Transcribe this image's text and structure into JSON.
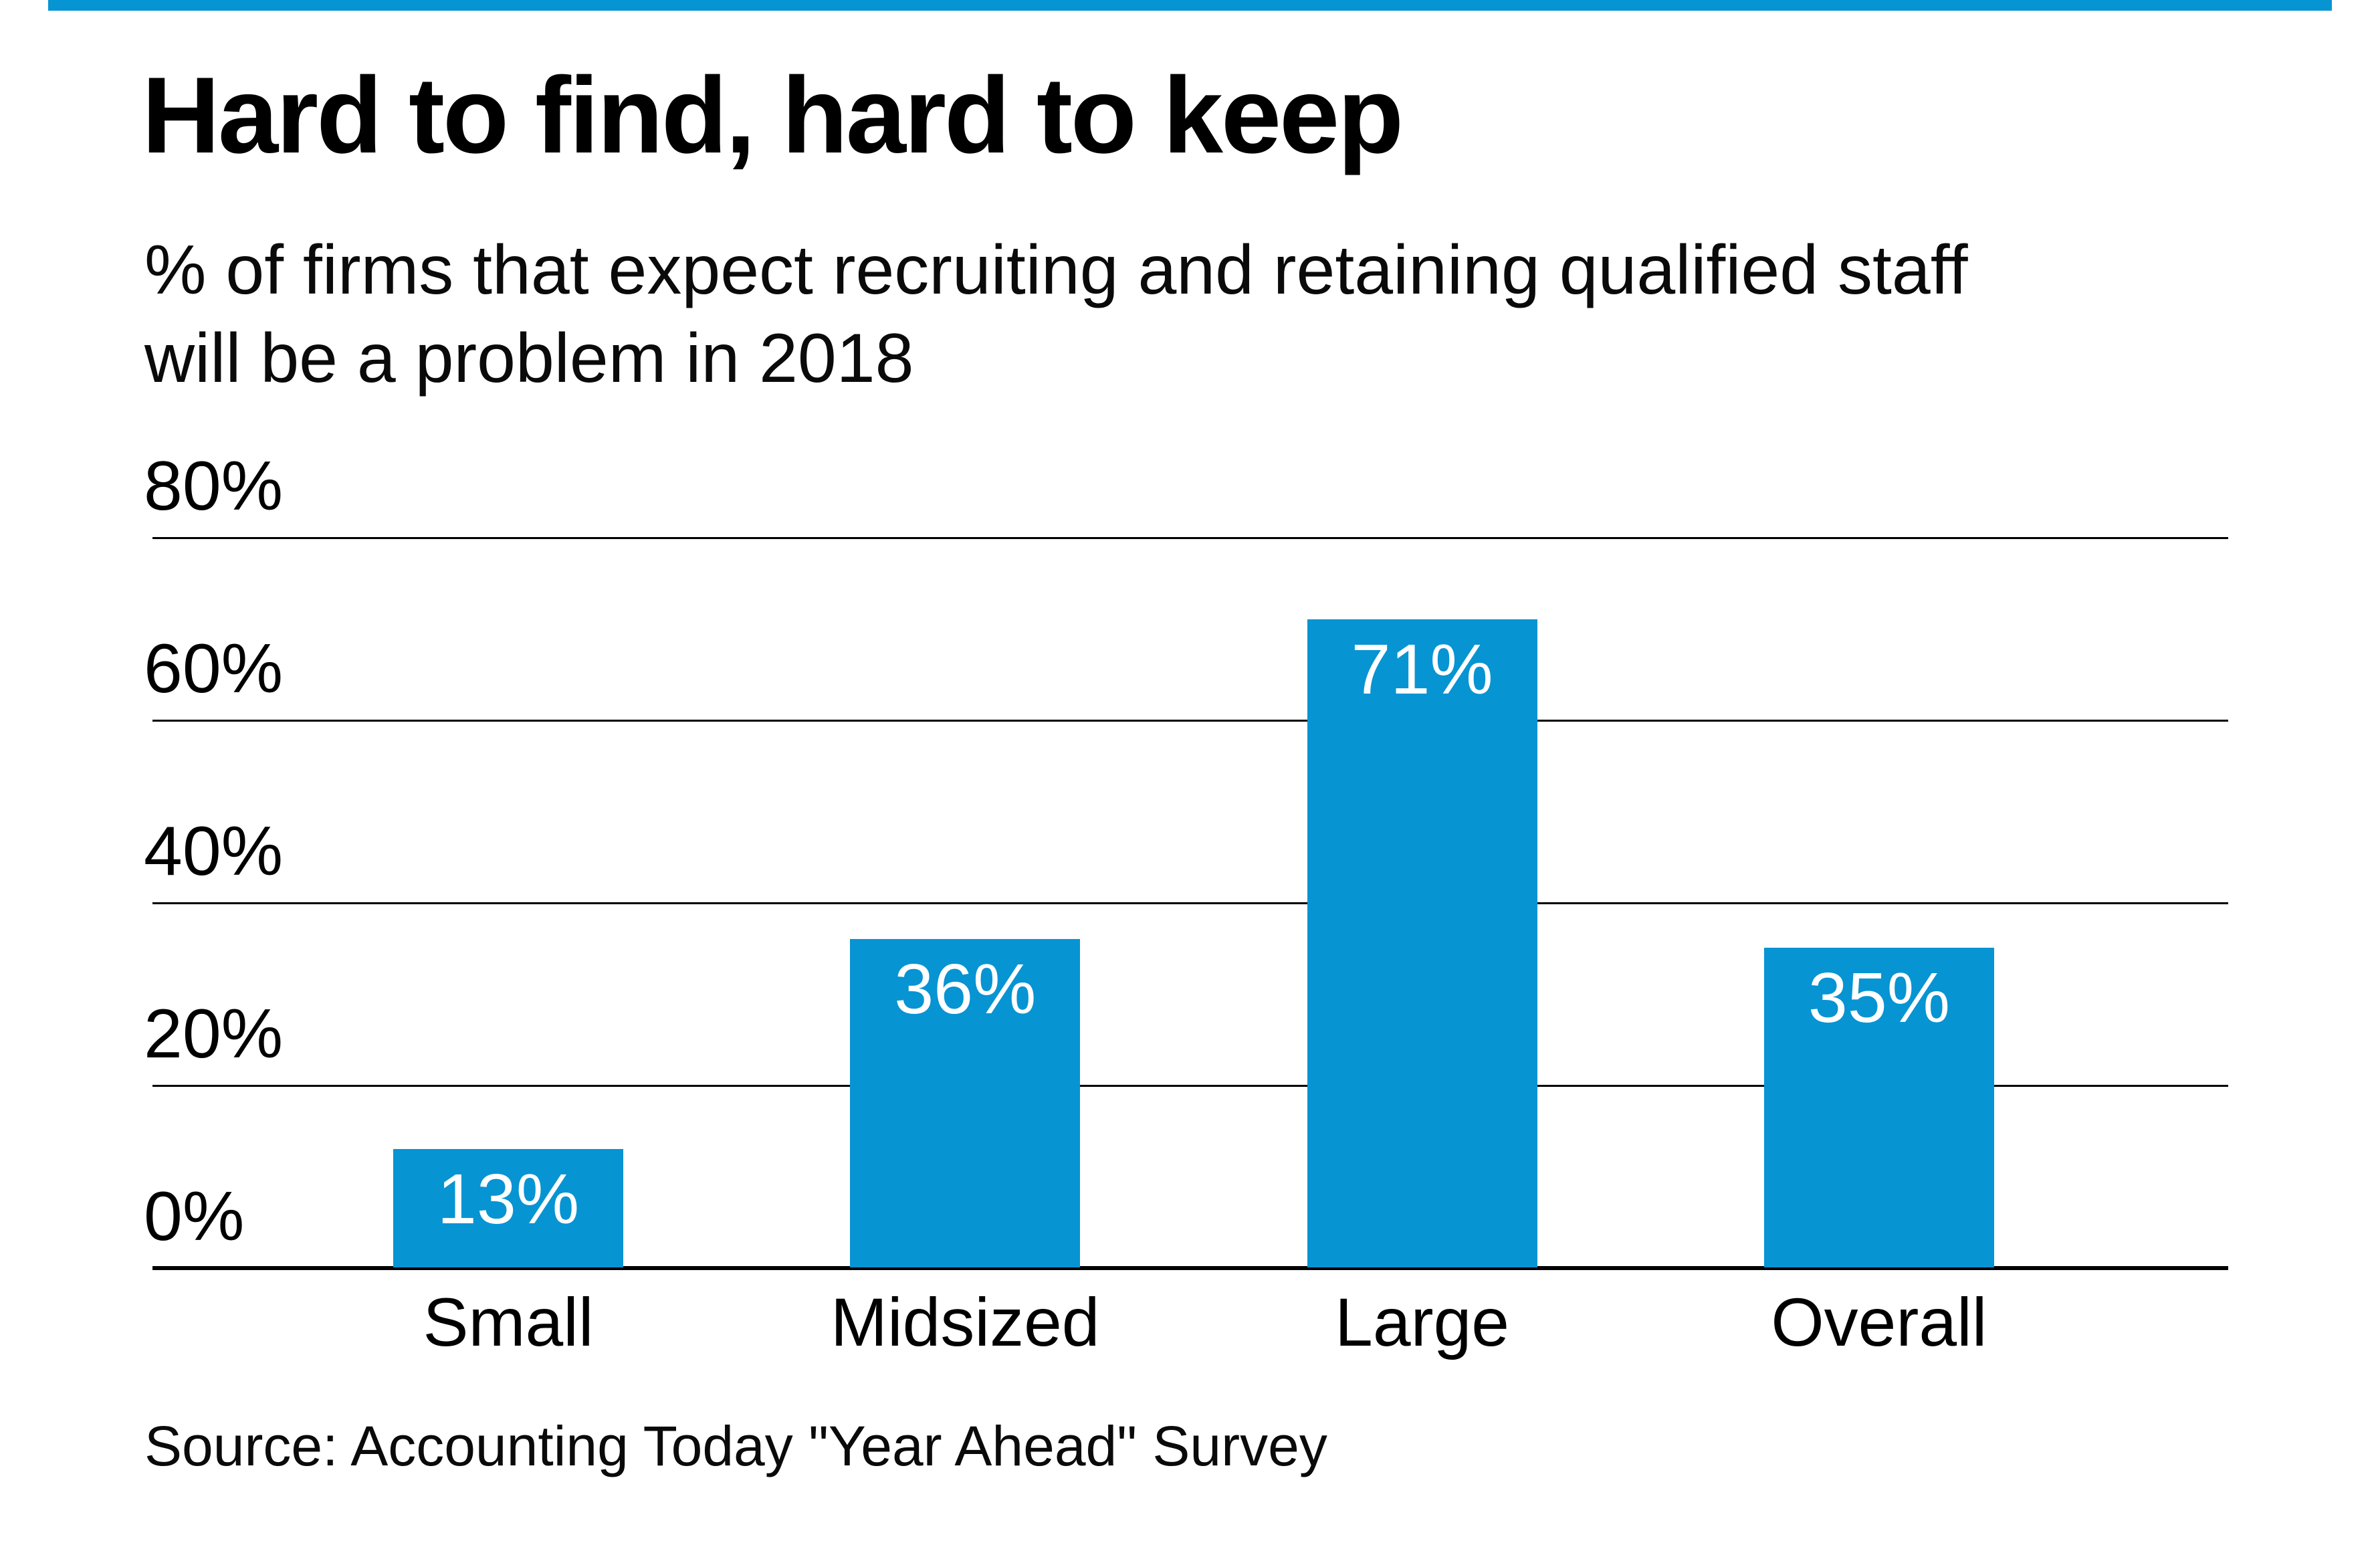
{
  "accent_color": "#0794d3",
  "header": {
    "title": "Hard to find, hard to keep",
    "subtitle_line1": "% of firms that expect recruiting and retaining qualified staff",
    "subtitle_line2": "will be a problem in 2018"
  },
  "footer": {
    "source": "Source: Accounting Today \"Year Ahead\" Survey"
  },
  "chart_data": {
    "type": "bar",
    "categories": [
      "Small",
      "Midsized",
      "Large",
      "Overall"
    ],
    "values": [
      13,
      36,
      71,
      35
    ],
    "value_labels": [
      "13%",
      "36%",
      "71%",
      "35%"
    ],
    "title": "Hard to find, hard to keep",
    "subtitle": "% of firms that expect recruiting and retaining qualified staff will be a problem in 2018",
    "xlabel": "",
    "ylabel": "",
    "ylim": [
      0,
      80
    ],
    "y_ticks": [
      {
        "label": "80%",
        "value": 80
      },
      {
        "label": "60%",
        "value": 60
      },
      {
        "label": "40%",
        "value": 40
      },
      {
        "label": "20%",
        "value": 20
      },
      {
        "label": "0%",
        "value": 0
      }
    ],
    "grid": "horizontal",
    "legend": "none",
    "bar_color": "#0794d3",
    "bar_value_text_color": "#ffffff",
    "gridline_color": "#000000"
  }
}
